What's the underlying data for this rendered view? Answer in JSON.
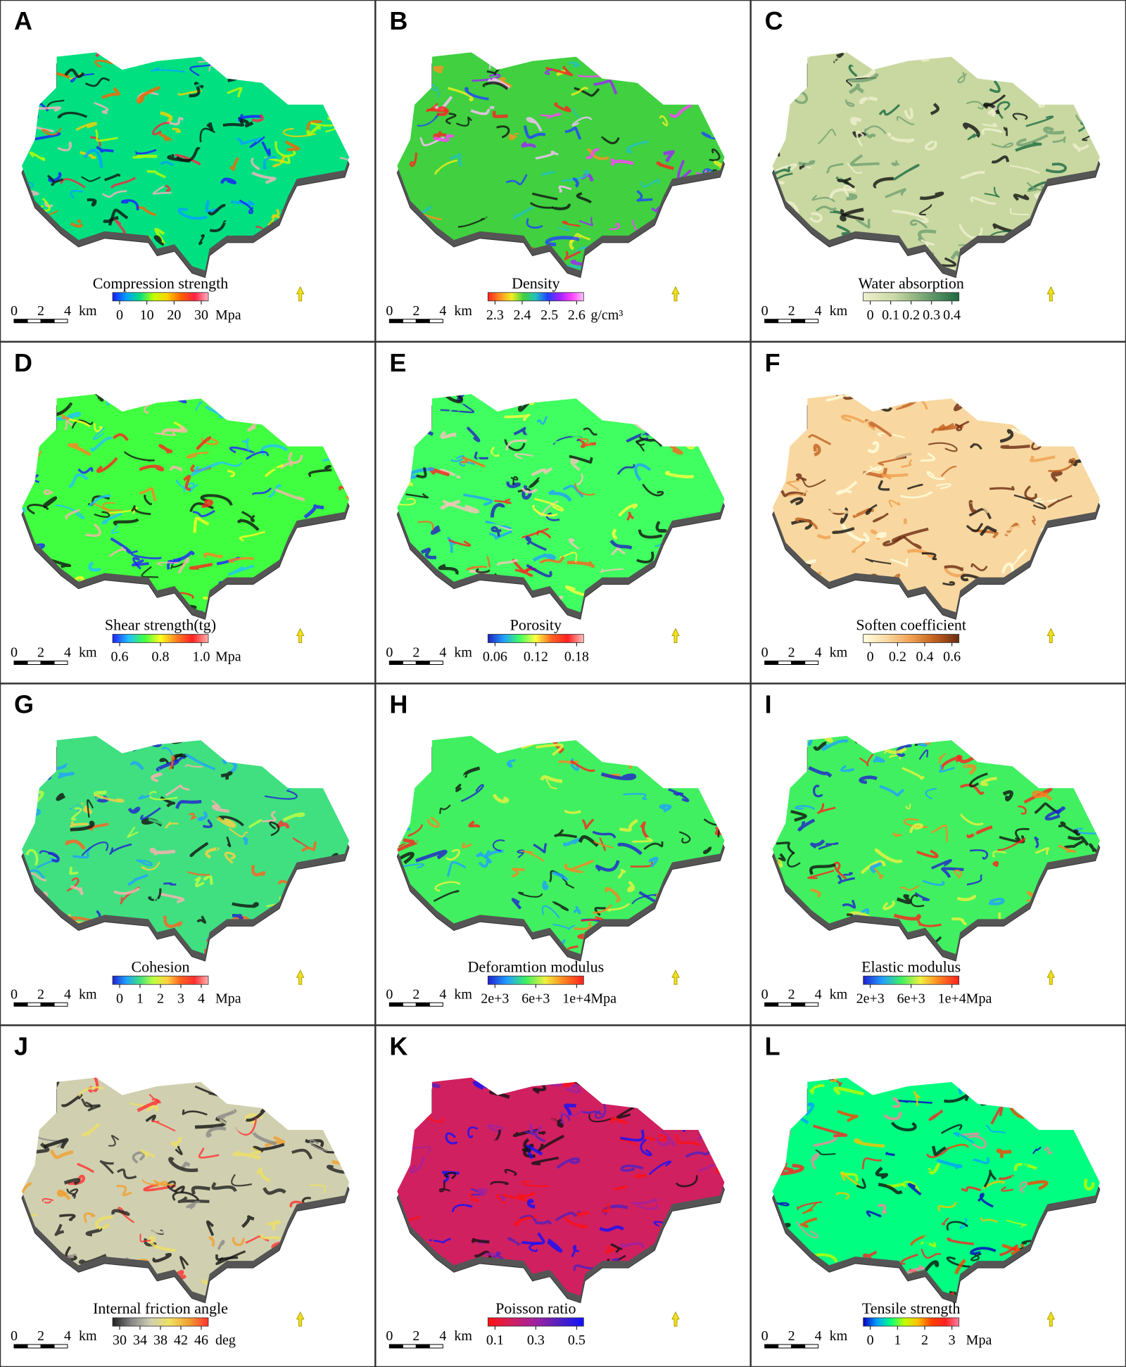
{
  "scale_bar": {
    "labels": [
      "0",
      "2",
      "4"
    ],
    "unit": "km"
  },
  "panels": [
    {
      "letter": "A",
      "title": "Compression strength",
      "ticks": [
        "0",
        "10",
        "20",
        "30"
      ],
      "unit": "Mpa",
      "colormap": [
        "#1a1aff",
        "#00a0ff",
        "#00e080",
        "#c0ff00",
        "#ffd000",
        "#ff6000",
        "#ff2040",
        "#ffb0c0"
      ]
    },
    {
      "letter": "B",
      "title": "Density",
      "ticks": [
        "2.3",
        "2.4",
        "2.5",
        "2.6"
      ],
      "unit": "g/cm³",
      "colormap": [
        "#ff2020",
        "#ff9020",
        "#f0f020",
        "#40d040",
        "#20c0c0",
        "#2040ff",
        "#a020ff",
        "#ff40ff",
        "#ffc0ff"
      ]
    },
    {
      "letter": "C",
      "title": "Water absorption",
      "ticks": [
        "0",
        "0.1",
        "0.2",
        "0.3",
        "0.4"
      ],
      "colormap": [
        "#f0f0d0",
        "#c8d8a0",
        "#70a070",
        "#1a6a40"
      ]
    },
    {
      "letter": "D",
      "title": "Shear strength(tg)",
      "ticks": [
        "0.6",
        "0.8",
        "1.0"
      ],
      "unit": "Mpa",
      "colormap": [
        "#2020ff",
        "#20c0ff",
        "#40ff40",
        "#ffff20",
        "#ff8020",
        "#ff2020",
        "#ffb0b0"
      ]
    },
    {
      "letter": "E",
      "title": "Porosity",
      "ticks": [
        "0.06",
        "0.12",
        "0.18"
      ],
      "colormap": [
        "#2020c0",
        "#20a0ff",
        "#40ff60",
        "#ffff40",
        "#ff6020",
        "#ff2020",
        "#ffc0c0"
      ]
    },
    {
      "letter": "F",
      "title": "Soften coefficient",
      "ticks": [
        "0",
        "0.2",
        "0.4",
        "0.6"
      ],
      "colormap": [
        "#ffffe0",
        "#f8d8a0",
        "#f0a050",
        "#c06020",
        "#6a2a10"
      ]
    },
    {
      "letter": "G",
      "title": "Cohesion",
      "ticks": [
        "0",
        "1",
        "2",
        "3",
        "4"
      ],
      "unit": "Mpa",
      "colormap": [
        "#2020d0",
        "#20a0ff",
        "#40e080",
        "#c0ff40",
        "#ffd040",
        "#ff6020",
        "#ff3030",
        "#ffb0b0"
      ]
    },
    {
      "letter": "H",
      "title": "Deforamtion modulus",
      "ticks": [
        "2e+3",
        "6e+3",
        "1e+4"
      ],
      "unit": "Mpa",
      "colormap": [
        "#2020d0",
        "#20a0ff",
        "#40f060",
        "#f0f040",
        "#ff8020",
        "#ff2020"
      ]
    },
    {
      "letter": "I",
      "title": "Elastic modulus",
      "ticks": [
        "2e+3",
        "6e+3",
        "1e+4"
      ],
      "unit": "Mpa",
      "colormap": [
        "#2020d0",
        "#20a0ff",
        "#40f060",
        "#f0f040",
        "#ff8020",
        "#ff2020"
      ]
    },
    {
      "letter": "J",
      "title": "Internal friction angle",
      "ticks": [
        "30",
        "34",
        "38",
        "42",
        "46"
      ],
      "unit": "deg",
      "colormap": [
        "#202020",
        "#888888",
        "#d0d0b0",
        "#f0e060",
        "#f0a030",
        "#ff3030"
      ]
    },
    {
      "letter": "K",
      "title": "Poisson ratio",
      "ticks": [
        "0.1",
        "0.3",
        "0.5"
      ],
      "colormap": [
        "#ff1010",
        "#d02060",
        "#a020a0",
        "#5020c0",
        "#1010ff"
      ]
    },
    {
      "letter": "L",
      "title": "Tensile strength",
      "ticks": [
        "0",
        "1",
        "2",
        "3"
      ],
      "unit": "Mpa",
      "colormap": [
        "#0000c0",
        "#00a0ff",
        "#00ff80",
        "#c0ff00",
        "#ffc000",
        "#ff4000",
        "#ff2020",
        "#ff80a0"
      ]
    }
  ]
}
